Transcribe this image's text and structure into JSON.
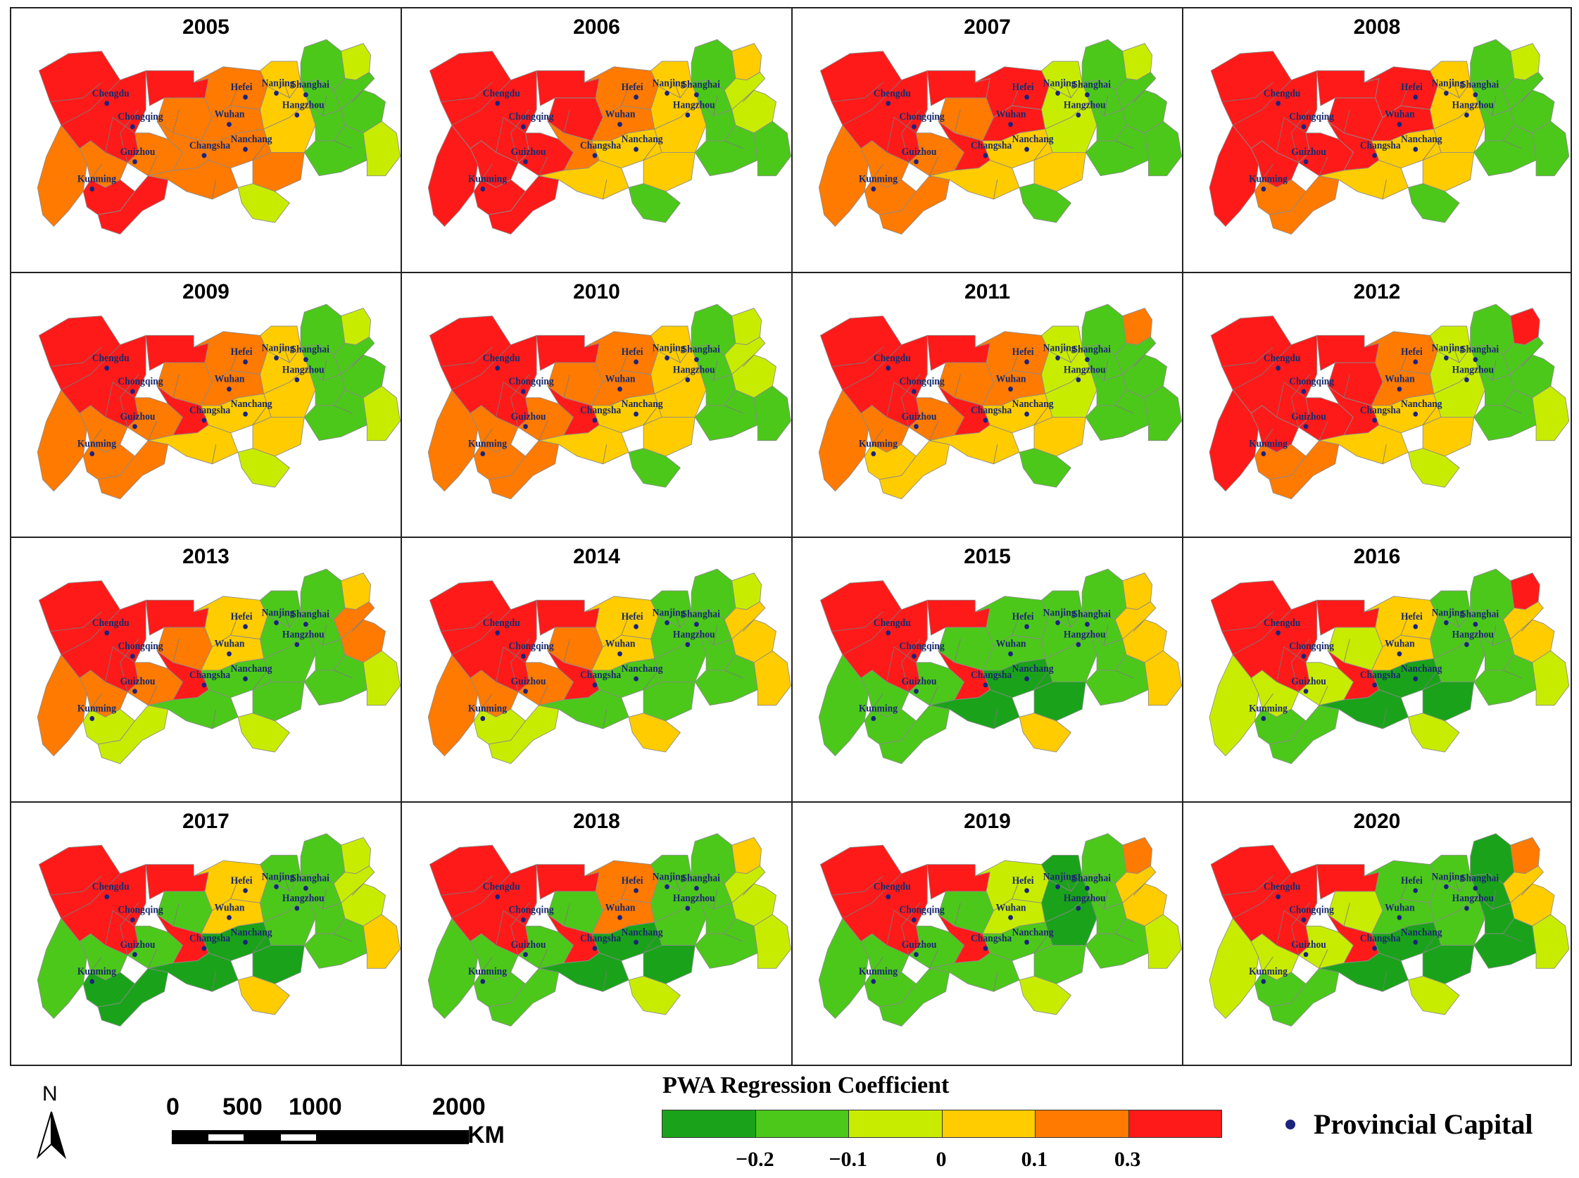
{
  "legend": {
    "title": "PWA Regression Coefficient",
    "colors": [
      "#1aa31a",
      "#4cc81a",
      "#c8ec00",
      "#ffcc00",
      "#ff7a00",
      "#ff1a1a"
    ],
    "labels": [
      "−0.2",
      "−0.1",
      "0",
      "0.1",
      "0.3"
    ]
  },
  "capital_legend": {
    "label": "Provincial Capital",
    "color": "#1a237e"
  },
  "scale": {
    "ticks": [
      "0",
      "500",
      "1000",
      "2000"
    ],
    "unit": "KM"
  },
  "north": {
    "label": "N"
  },
  "cities": [
    "Chengdu",
    "Chongqing",
    "Guizhou",
    "Kunming",
    "Changsha",
    "Wuhan",
    "Nanchang",
    "Hefei",
    "Nanjing",
    "Shanghai",
    "Hangzhou"
  ],
  "panels": [
    {
      "year": "2005",
      "c": [
        5,
        5,
        4,
        4,
        5,
        4,
        4,
        3,
        1,
        2,
        1,
        2
      ]
    },
    {
      "year": "2006",
      "c": [
        5,
        5,
        4,
        5,
        5,
        4,
        3,
        3,
        1,
        3,
        2,
        1
      ]
    },
    {
      "year": "2007",
      "c": [
        5,
        5,
        5,
        4,
        4,
        5,
        3,
        2,
        1,
        2,
        1,
        1
      ]
    },
    {
      "year": "2008",
      "c": [
        5,
        5,
        5,
        5,
        4,
        5,
        3,
        3,
        1,
        2,
        1,
        1
      ]
    },
    {
      "year": "2009",
      "c": [
        5,
        5,
        5,
        4,
        4,
        4,
        3,
        3,
        1,
        2,
        1,
        2
      ]
    },
    {
      "year": "2010",
      "c": [
        5,
        5,
        5,
        4,
        4,
        4,
        3,
        3,
        1,
        2,
        2,
        1
      ]
    },
    {
      "year": "2011",
      "c": [
        5,
        5,
        5,
        4,
        3,
        4,
        3,
        2,
        1,
        4,
        1,
        1
      ]
    },
    {
      "year": "2012",
      "c": [
        5,
        5,
        5,
        5,
        4,
        4,
        3,
        2,
        1,
        5,
        1,
        2
      ]
    },
    {
      "year": "2013",
      "c": [
        5,
        5,
        5,
        4,
        2,
        3,
        1,
        1,
        1,
        3,
        4,
        2
      ]
    },
    {
      "year": "2014",
      "c": [
        5,
        5,
        5,
        4,
        2,
        3,
        1,
        1,
        1,
        2,
        3,
        3
      ]
    },
    {
      "year": "2015",
      "c": [
        5,
        5,
        5,
        1,
        1,
        1,
        0,
        1,
        1,
        3,
        3,
        3
      ]
    },
    {
      "year": "2016",
      "c": [
        5,
        5,
        5,
        2,
        1,
        3,
        0,
        1,
        1,
        5,
        3,
        2
      ]
    },
    {
      "year": "2017",
      "c": [
        5,
        5,
        5,
        1,
        0,
        3,
        0,
        1,
        1,
        2,
        2,
        3
      ]
    },
    {
      "year": "2018",
      "c": [
        5,
        5,
        5,
        1,
        1,
        4,
        0,
        1,
        1,
        3,
        2,
        2
      ]
    },
    {
      "year": "2019",
      "c": [
        5,
        5,
        5,
        1,
        1,
        2,
        1,
        0,
        1,
        4,
        3,
        2
      ]
    },
    {
      "year": "2020",
      "c": [
        5,
        5,
        5,
        2,
        1,
        1,
        0,
        1,
        0,
        4,
        3,
        2
      ]
    }
  ]
}
